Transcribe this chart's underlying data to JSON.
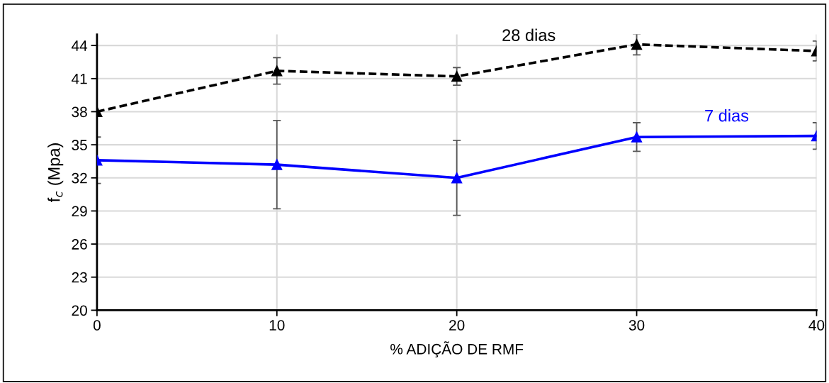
{
  "chart_data": {
    "type": "line",
    "xlabel": "% ADIÇÃO DE RMF",
    "ylabel": "f$_{c}$ (Mpa)",
    "x": [
      0,
      10,
      20,
      30,
      40
    ],
    "xlim": [
      0,
      40
    ],
    "xticks": [
      0,
      10,
      20,
      30,
      40
    ],
    "ylim": [
      20,
      45
    ],
    "yticks": [
      20,
      23,
      26,
      29,
      32,
      35,
      38,
      41,
      44
    ],
    "grid": true,
    "legend": false,
    "marker": "triangle",
    "series": [
      {
        "name": "28 dias",
        "color": "#000000",
        "line_style": "dashed",
        "values": [
          38.0,
          41.7,
          41.2,
          44.1,
          43.5
        ],
        "errors": [
          null,
          1.2,
          0.8,
          0.95,
          0.9
        ]
      },
      {
        "name": "7 dias",
        "color": "#0000ff",
        "line_style": "solid",
        "values": [
          33.6,
          33.2,
          32.0,
          35.7,
          35.8
        ],
        "errors": [
          2.1,
          4.0,
          3.4,
          1.3,
          1.2
        ]
      }
    ]
  }
}
